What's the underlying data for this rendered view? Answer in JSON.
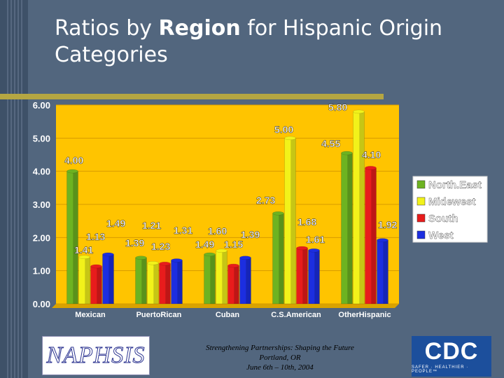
{
  "title_parts": [
    "Ratios by ",
    "Region",
    " for Hispanic Origin Categories"
  ],
  "footer": {
    "line1": "Strengthening Partnerships: Shaping the Future",
    "line2": "Portland, OR",
    "line3": "June 6th – 10th, 2004"
  },
  "logos": {
    "left": "NAPHSIS",
    "right": "CDC",
    "right_tagline": "SAFER · HEALTHIER · PEOPLE™"
  },
  "chart_data": {
    "type": "bar",
    "categories": [
      "Mexican",
      "PuertoRican",
      "Cuban",
      "C.S.American",
      "OtherHispanic"
    ],
    "series": [
      {
        "name": "North.East",
        "color": "#6db321",
        "values": [
          4.0,
          1.39,
          1.49,
          2.73,
          4.55
        ]
      },
      {
        "name": "Midewest",
        "color": "#f2f21a",
        "values": [
          1.41,
          1.23,
          1.6,
          5.0,
          5.8
        ]
      },
      {
        "name": "South",
        "color": "#e81c1c",
        "values": [
          1.13,
          1.21,
          1.15,
          1.68,
          4.1
        ]
      },
      {
        "name": "West",
        "color": "#1c2ee0",
        "values": [
          1.49,
          1.31,
          1.39,
          1.61,
          1.92
        ]
      }
    ],
    "value_labels": [
      [
        "4.00",
        "1.41",
        "1.13",
        "1.49"
      ],
      [
        "1.39",
        "1.23",
        "1.21",
        "1.31"
      ],
      [
        "1.49",
        "1.60",
        "1.15",
        "1.39"
      ],
      [
        "2.73",
        "5.00",
        "1.68",
        "1.61"
      ],
      [
        "4.55",
        "5.80",
        "4.10",
        "1.92"
      ]
    ],
    "y_ticks": [
      "0.00",
      "1.00",
      "2.00",
      "3.00",
      "4.00",
      "5.00",
      "6.00"
    ],
    "ylim": [
      0,
      6
    ],
    "legend_position": "right",
    "colors": {
      "plot_bg": "#ffc400",
      "axis_text": "#ffffff"
    }
  }
}
